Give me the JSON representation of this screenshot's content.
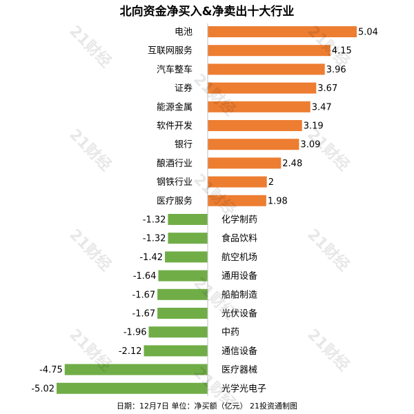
{
  "title": "北向资金净买入&净卖出十大行业",
  "footer": "日期：12月7日 单位：净买额（亿元） 21投资通制图",
  "watermark": "21财经",
  "colors": {
    "positive": "#ED7D31",
    "negative": "#70AD47"
  },
  "chart_data": {
    "type": "bar",
    "orientation": "horizontal",
    "title": "北向资金净买入&净卖出十大行业",
    "categories": [
      "电池",
      "互联网服务",
      "汽车整车",
      "证券",
      "能源金属",
      "软件开发",
      "银行",
      "酿酒行业",
      "钢铁行业",
      "医疗服务",
      "化学制药",
      "食品饮料",
      "航空机场",
      "通用设备",
      "船舶制造",
      "光伏设备",
      "中药",
      "通信设备",
      "医疗器械",
      "光学光电子"
    ],
    "values": [
      5.04,
      4.15,
      3.96,
      3.67,
      3.47,
      3.19,
      3.09,
      2.48,
      2,
      1.98,
      -1.32,
      -1.32,
      -1.42,
      -1.64,
      -1.67,
      -1.67,
      -1.96,
      -2.12,
      -4.75,
      -5.02
    ],
    "xlim": [
      -5.02,
      5.04
    ],
    "grid": false,
    "legend": "none"
  }
}
